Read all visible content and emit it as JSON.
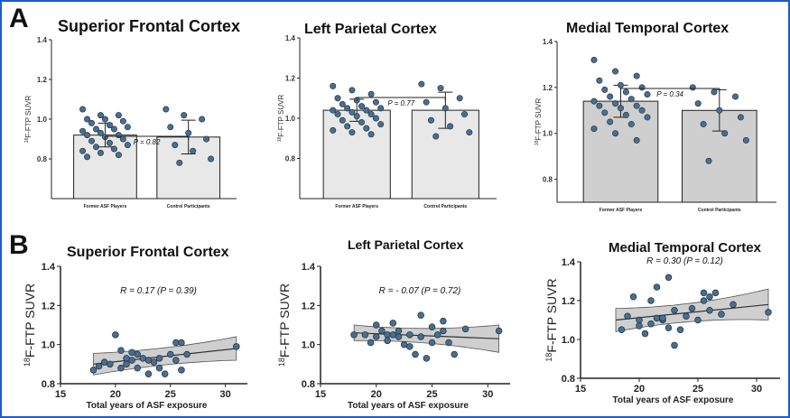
{
  "panel_letters": {
    "a": "A",
    "b": "B"
  },
  "bar_ylabel": "18F-FTP SUVR",
  "scatter_ylabel": "18F-FTP SUVR",
  "categories": [
    "Former ASF Players",
    "Control Participants"
  ],
  "colors": {
    "point": "#4a6e8c",
    "bar_fill": "#e8e8e8",
    "bar_fill_mt": "#cfcfcf",
    "band": "#cfcfcf",
    "border": "#1d5cc4"
  },
  "chart_data": [
    {
      "type": "bar",
      "panel": "A",
      "title": "Superior Frontal Cortex",
      "categories": [
        "Former ASF Players",
        "Control Participants"
      ],
      "values": [
        0.92,
        0.91
      ],
      "sd": [
        0.06,
        0.085
      ],
      "ylim": [
        0.6,
        1.4
      ],
      "yticks": [
        "0.8",
        "1.0",
        "1.2",
        "1.4"
      ],
      "annotation": "P = 0.82",
      "points": [
        [
          1.05,
          1.02,
          1.02,
          1.0,
          1.0,
          0.99,
          0.98,
          0.97,
          0.96,
          0.95,
          0.95,
          0.94,
          0.93,
          0.92,
          0.92,
          0.91,
          0.9,
          0.89,
          0.88,
          0.87,
          0.86,
          0.85,
          0.84,
          0.83,
          0.82,
          0.81
        ],
        [
          1.05,
          1.02,
          1.0,
          0.96,
          0.93,
          0.9,
          0.87,
          0.84,
          0.8,
          0.78
        ]
      ]
    },
    {
      "type": "bar",
      "panel": "A",
      "title": "Left Parietal Cortex",
      "categories": [
        "Former ASF Players",
        "Control Participants"
      ],
      "values": [
        1.04,
        1.04
      ],
      "sd": [
        0.055,
        0.09
      ],
      "ylim": [
        0.6,
        1.4
      ],
      "yticks": [
        "0.8",
        "1.0",
        "1.2",
        "1.4"
      ],
      "annotation": "P = 0.77",
      "points": [
        [
          1.16,
          1.14,
          1.12,
          1.1,
          1.09,
          1.08,
          1.07,
          1.06,
          1.05,
          1.05,
          1.04,
          1.04,
          1.03,
          1.02,
          1.02,
          1.01,
          1.0,
          0.99,
          0.98,
          0.97,
          0.96,
          0.95,
          0.94,
          0.93,
          0.92
        ],
        [
          1.17,
          1.15,
          1.1,
          1.08,
          1.05,
          1.02,
          0.99,
          0.96,
          0.93,
          0.91
        ]
      ]
    },
    {
      "type": "bar",
      "panel": "A",
      "title": "Medial Temporal Cortex",
      "categories": [
        "Former ASF Players",
        "Control Participants"
      ],
      "values": [
        1.14,
        1.1
      ],
      "sd": [
        0.07,
        0.09
      ],
      "ylim": [
        0.7,
        1.4
      ],
      "yticks": [
        "0.8",
        "1.0",
        "1.2",
        "1.4"
      ],
      "annotation": "P = 0.34",
      "points": [
        [
          1.32,
          1.27,
          1.25,
          1.23,
          1.21,
          1.2,
          1.19,
          1.18,
          1.17,
          1.16,
          1.15,
          1.14,
          1.13,
          1.12,
          1.12,
          1.11,
          1.1,
          1.09,
          1.08,
          1.07,
          1.05,
          1.04,
          1.02,
          1.0,
          0.97
        ],
        [
          1.2,
          1.18,
          1.16,
          1.13,
          1.1,
          1.07,
          1.04,
          1.0,
          0.97,
          0.88
        ]
      ]
    },
    {
      "type": "scatter",
      "panel": "B",
      "title": "Superior Frontal Cortex",
      "xlabel": "Total years of ASF exposure",
      "ylabel": "18F-FTP SUVR",
      "xlim": [
        15,
        32
      ],
      "ylim": [
        0.8,
        1.4
      ],
      "xticks": [
        "15",
        "20",
        "25",
        "30"
      ],
      "yticks": [
        "0.8",
        "1.0",
        "1.2",
        "1.4"
      ],
      "annotation": "R = 0.17 (P = 0.39)",
      "fit": {
        "y_start": 0.9,
        "y_end": 0.98,
        "band_left": 0.055,
        "band_mid": 0.03,
        "band_right": 0.06
      },
      "points": [
        [
          18,
          0.87
        ],
        [
          18.5,
          0.89
        ],
        [
          19,
          0.91
        ],
        [
          19.5,
          0.9
        ],
        [
          20,
          1.05
        ],
        [
          20.5,
          0.97
        ],
        [
          20.5,
          0.88
        ],
        [
          21,
          0.93
        ],
        [
          21,
          0.9
        ],
        [
          21.5,
          0.96
        ],
        [
          21.5,
          0.92
        ],
        [
          22,
          0.95
        ],
        [
          22,
          0.88
        ],
        [
          22.5,
          0.93
        ],
        [
          23,
          0.85
        ],
        [
          23,
          0.92
        ],
        [
          23.5,
          0.91
        ],
        [
          24,
          0.88
        ],
        [
          24,
          0.93
        ],
        [
          24.5,
          0.85
        ],
        [
          25,
          0.95
        ],
        [
          25.5,
          1.01
        ],
        [
          25.5,
          0.92
        ],
        [
          26,
          0.87
        ],
        [
          26,
          1.01
        ],
        [
          26.5,
          0.95
        ],
        [
          31,
          0.99
        ]
      ]
    },
    {
      "type": "scatter",
      "panel": "B",
      "title": "Left Parietal Cortex",
      "xlabel": "Total years of ASF exposure",
      "ylabel": "18F-FTP SUVR",
      "xlim": [
        15,
        32
      ],
      "ylim": [
        0.8,
        1.4
      ],
      "xticks": [
        "15",
        "20",
        "25",
        "30"
      ],
      "yticks": [
        "0.8",
        "1.0",
        "1.2",
        "1.4"
      ],
      "annotation": "R = - 0.07 (P = 0.72)",
      "fit": {
        "y_start": 1.06,
        "y_end": 1.03,
        "band_left": 0.04,
        "band_mid": 0.02,
        "band_right": 0.07
      },
      "points": [
        [
          18,
          1.05
        ],
        [
          19,
          1.05
        ],
        [
          19.5,
          1.01
        ],
        [
          20,
          1.04
        ],
        [
          20,
          1.1
        ],
        [
          20.5,
          1.07
        ],
        [
          21,
          1.05
        ],
        [
          21,
          1.02
        ],
        [
          21.5,
          1.11
        ],
        [
          21.5,
          1.05
        ],
        [
          22,
          1.04
        ],
        [
          22,
          1.07
        ],
        [
          22.5,
          1.0
        ],
        [
          23,
          1.05
        ],
        [
          23,
          0.99
        ],
        [
          23.5,
          0.95
        ],
        [
          24,
          1.15
        ],
        [
          24,
          1.04
        ],
        [
          24.5,
          0.93
        ],
        [
          25,
          1.01
        ],
        [
          25,
          1.09
        ],
        [
          25.5,
          1.05
        ],
        [
          26,
          1.07
        ],
        [
          26,
          1.12
        ],
        [
          26.5,
          1.01
        ],
        [
          27,
          0.95
        ],
        [
          28,
          1.08
        ],
        [
          31,
          1.07
        ]
      ]
    },
    {
      "type": "scatter",
      "panel": "B",
      "title": "Medial Temporal Cortex",
      "xlabel": "Total years of ASF exposure",
      "ylabel": "18F-FTP SUVR",
      "xlim": [
        15,
        32
      ],
      "ylim": [
        0.8,
        1.4
      ],
      "xticks": [
        "15",
        "20",
        "25",
        "30"
      ],
      "yticks": [
        "0.8",
        "1.0",
        "1.2",
        "1.4"
      ],
      "annotation": "R = 0.30 (P = 0.12)",
      "fit": {
        "y_start": 1.1,
        "y_end": 1.18,
        "band_left": 0.06,
        "band_mid": 0.025,
        "band_right": 0.08
      },
      "points": [
        [
          18.5,
          1.05
        ],
        [
          19,
          1.12
        ],
        [
          19.5,
          1.22
        ],
        [
          20,
          1.07
        ],
        [
          20,
          1.1
        ],
        [
          20.5,
          1.03
        ],
        [
          21,
          1.08
        ],
        [
          21,
          1.2
        ],
        [
          21.5,
          1.11
        ],
        [
          21.5,
          1.27
        ],
        [
          22,
          1.1
        ],
        [
          22,
          1.11
        ],
        [
          22.5,
          1.32
        ],
        [
          22.5,
          1.06
        ],
        [
          23,
          0.97
        ],
        [
          23,
          1.15
        ],
        [
          23.5,
          1.05
        ],
        [
          24,
          1.12
        ],
        [
          24.5,
          1.16
        ],
        [
          25,
          1.1
        ],
        [
          25.5,
          1.24
        ],
        [
          25.5,
          1.2
        ],
        [
          26,
          1.15
        ],
        [
          26,
          1.22
        ],
        [
          26.5,
          1.24
        ],
        [
          27,
          1.13
        ],
        [
          28,
          1.18
        ],
        [
          31,
          1.14
        ]
      ]
    }
  ]
}
